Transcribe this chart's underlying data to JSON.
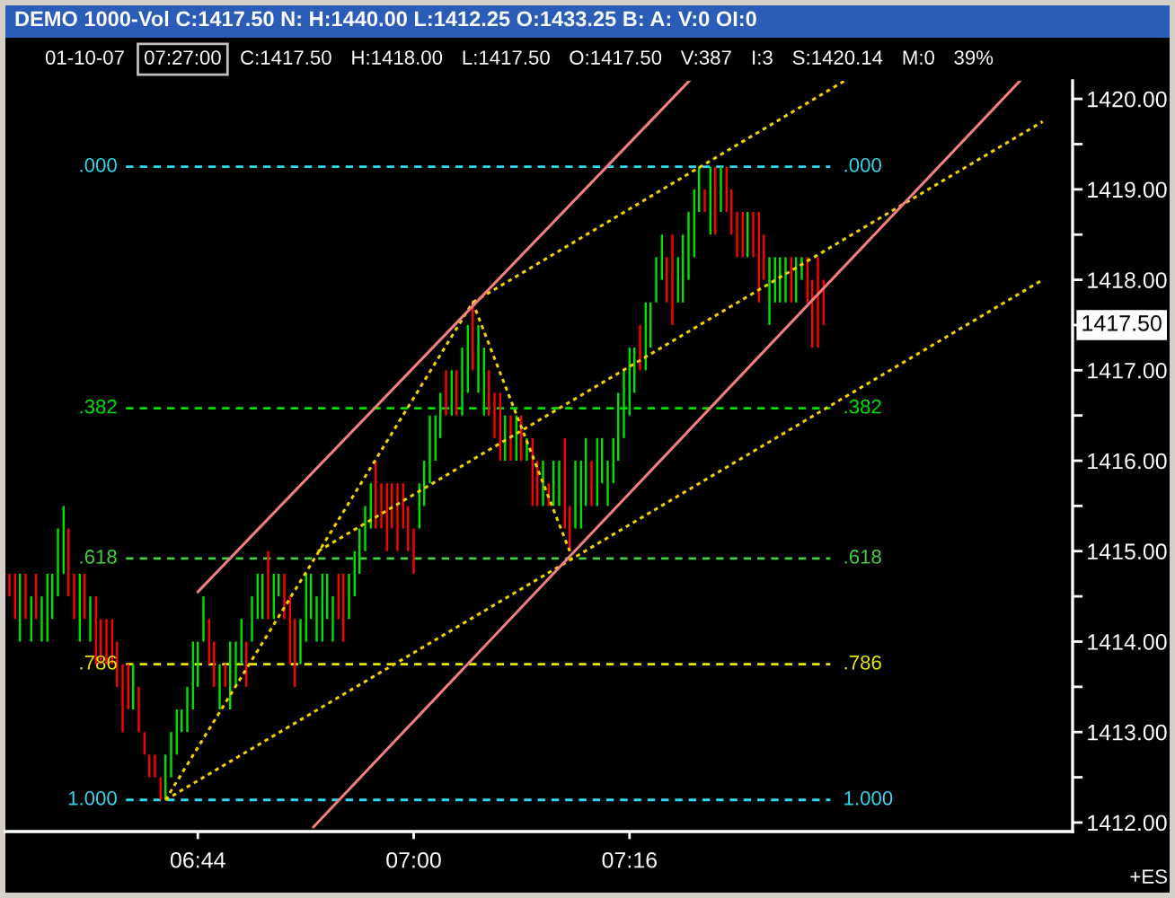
{
  "chart_data": {
    "type": "bar",
    "title": "DEMO 1000-Vol C:1417.50 N: H:1440.00 L:1412.25 O:1433.25 B: A: V:0 OI:0",
    "annotations": [
      "01-10-07",
      "07:27:00",
      "C:1417.50",
      "H:1418.00",
      "L:1417.50",
      "O:1417.50",
      "V:387",
      "I:3",
      "S:1420.14",
      "M:0",
      "39%",
      "+ES",
      "1417.50",
      ".000",
      ".000",
      ".382",
      ".382",
      ".618",
      ".618",
      ".786",
      ".786",
      "1.000",
      "1.000"
    ],
    "x": [
      6.5,
      6.507,
      6.513,
      6.52,
      6.527,
      6.533,
      6.54,
      6.547,
      6.553,
      6.56,
      6.567,
      6.573,
      6.58,
      6.587,
      6.593,
      6.6,
      6.607,
      6.613,
      6.62,
      6.627,
      6.633,
      6.64,
      6.647,
      6.653,
      6.66,
      6.667,
      6.673,
      6.68,
      6.687,
      6.693,
      6.7,
      6.707,
      6.713,
      6.72,
      6.727,
      6.733,
      6.74,
      6.747,
      6.753,
      6.76,
      6.767,
      6.773,
      6.78,
      6.787,
      6.793,
      6.8,
      6.807,
      6.813,
      6.82,
      6.827,
      6.833,
      6.84,
      6.847,
      6.853,
      6.86,
      6.867,
      6.873,
      6.88,
      6.887,
      6.893,
      6.9,
      6.907,
      6.913,
      6.92,
      6.927,
      6.933,
      6.94,
      6.947,
      6.953,
      6.96,
      6.967,
      6.973,
      6.98,
      6.987,
      6.993,
      7.0,
      7.007,
      7.013,
      7.02,
      7.027,
      7.033,
      7.04,
      7.047,
      7.053,
      7.06,
      7.067,
      7.073,
      7.08,
      7.087,
      7.093,
      7.1,
      7.107,
      7.113,
      7.12,
      7.127,
      7.133,
      7.14,
      7.147,
      7.153,
      7.16,
      7.167,
      7.173,
      7.18,
      7.187,
      7.193,
      7.2,
      7.207,
      7.213,
      7.22,
      7.227,
      7.233,
      7.24,
      7.247,
      7.253,
      7.26,
      7.267,
      7.273,
      7.28,
      7.287,
      7.293,
      7.3,
      7.307,
      7.313,
      7.32,
      7.327,
      7.333,
      7.34,
      7.347,
      7.353,
      7.36,
      7.367,
      7.373,
      7.38,
      7.387,
      7.393,
      7.4,
      7.407,
      7.413,
      7.42,
      7.427,
      7.433,
      7.44,
      7.447,
      7.453,
      7.46,
      7.467,
      7.473,
      7.48,
      7.487,
      7.493,
      7.5,
      7.507
    ],
    "base": [
      1414.5,
      1414.25,
      1414.0,
      1414.25,
      1414.0,
      1414.25,
      1414.0,
      1414.0,
      1414.25,
      1414.5,
      1414.75,
      1414.5,
      1414.25,
      1414.0,
      1414.25,
      1414.0,
      1413.75,
      1413.75,
      1413.75,
      1413.75,
      1413.5,
      1413.0,
      1413.25,
      1413.25,
      1413.0,
      1412.75,
      1412.5,
      1412.5,
      1412.25,
      1412.25,
      1412.5,
      1412.75,
      1413.0,
      1413.0,
      1413.25,
      1413.5,
      1414.0,
      1413.75,
      1413.5,
      1413.25,
      1413.5,
      1413.25,
      1413.5,
      1413.75,
      1413.5,
      1414.0,
      1414.25,
      1414.25,
      1414.25,
      1414.25,
      1414.5,
      1414.25,
      1413.75,
      1413.5,
      1413.75,
      1414.0,
      1414.25,
      1414.0,
      1414.0,
      1414.25,
      1414.0,
      1414.25,
      1414.0,
      1414.25,
      1414.5,
      1414.75,
      1415.0,
      1415.25,
      1415.25,
      1415.25,
      1415.0,
      1415.25,
      1415.0,
      1415.25,
      1415.0,
      1414.75,
      1415.25,
      1415.5,
      1415.75,
      1416.0,
      1416.25,
      1416.5,
      1416.5,
      1416.5,
      1416.5,
      1416.75,
      1417.0,
      1416.75,
      1416.5,
      1416.5,
      1416.25,
      1416.0,
      1416.0,
      1416.0,
      1416.0,
      1416.0,
      1416.0,
      1415.5,
      1415.5,
      1415.5,
      1415.5,
      1415.5,
      1415.5,
      1415.25,
      1415.0,
      1415.25,
      1415.25,
      1415.5,
      1415.5,
      1415.5,
      1415.75,
      1415.5,
      1415.75,
      1416.0,
      1416.25,
      1416.5,
      1416.75,
      1417.0,
      1417.0,
      1417.25,
      1417.75,
      1418.0,
      1417.75,
      1417.5,
      1417.75,
      1417.75,
      1418.0,
      1418.25,
      1418.75,
      1418.75,
      1418.5,
      1418.5,
      1418.75,
      1418.75,
      1418.5,
      1418.25,
      1418.25,
      1418.25,
      1418.25,
      1417.75,
      1418.0,
      1417.5,
      1417.75,
      1417.75,
      1417.75,
      1417.75,
      1417.75,
      1418.0,
      1417.75,
      1417.25,
      1417.25,
      1417.5
    ],
    "values": [
      0.25,
      0.5,
      0.75,
      0.5,
      0.5,
      0.5,
      0.5,
      0.75,
      0.5,
      0.75,
      0.75,
      0.75,
      0.5,
      0.75,
      0.5,
      0.5,
      0.75,
      0.5,
      0.5,
      0.5,
      0.5,
      0.75,
      0.5,
      0.5,
      0.5,
      0.25,
      0.25,
      0.25,
      0.25,
      0.5,
      0.5,
      0.5,
      0.25,
      0.5,
      0.75,
      0.5,
      0.5,
      0.5,
      0.5,
      0.5,
      0.25,
      0.75,
      0.5,
      0.5,
      0.5,
      0.5,
      0.5,
      0.5,
      0.75,
      0.5,
      0.25,
      0.5,
      0.75,
      0.75,
      0.5,
      0.75,
      0.5,
      0.5,
      0.75,
      0.5,
      0.5,
      0.5,
      0.75,
      0.5,
      0.5,
      0.5,
      0.5,
      0.5,
      0.75,
      0.5,
      0.75,
      0.5,
      0.75,
      0.5,
      0.5,
      0.5,
      0.5,
      0.5,
      0.75,
      0.5,
      0.5,
      0.5,
      0.5,
      0.5,
      0.75,
      0.75,
      0.75,
      0.75,
      0.75,
      0.5,
      0.5,
      0.75,
      0.5,
      0.5,
      0.5,
      0.5,
      0.25,
      0.75,
      0.5,
      0.5,
      0.25,
      0.5,
      0.5,
      1.0,
      0.5,
      0.75,
      0.75,
      0.75,
      0.5,
      0.75,
      0.5,
      0.5,
      0.5,
      0.75,
      0.75,
      0.75,
      0.5,
      0.5,
      0.75,
      0.5,
      0.5,
      0.5,
      0.5,
      1.0,
      0.5,
      0.75,
      0.75,
      0.75,
      0.5,
      0.25,
      0.75,
      0.75,
      0.5,
      0.5,
      0.5,
      0.5,
      0.5,
      0.5,
      0.5,
      1.0,
      0.5,
      0.75,
      0.5,
      0.5,
      0.5,
      0.5,
      0.5,
      0.25,
      0.5,
      0.75,
      1.0,
      0.5
    ],
    "colors": [
      "#ff0000",
      "#ff0000",
      "#00e000",
      "#ff0000",
      "#00e000",
      "#ff0000",
      "#00e000",
      "#00e000",
      "#00e000",
      "#00e000",
      "#00e000",
      "#ff0000",
      "#ff0000",
      "#00e000",
      "#ff0000",
      "#00e000",
      "#ff0000",
      "#ff0000",
      "#ff0000",
      "#ff0000",
      "#ff0000",
      "#ff0000",
      "#ff0000",
      "#00e000",
      "#ff0000",
      "#ff0000",
      "#ff0000",
      "#ff0000",
      "#ff0000",
      "#00e000",
      "#00e000",
      "#00e000",
      "#00e000",
      "#00e000",
      "#00e000",
      "#00e000",
      "#00e000",
      "#ff0000",
      "#ff0000",
      "#00e000",
      "#ff0000",
      "#00e000",
      "#00e000",
      "#00e000",
      "#ff0000",
      "#00e000",
      "#00e000",
      "#00e000",
      "#ff0000",
      "#00e000",
      "#00e000",
      "#ff0000",
      "#ff0000",
      "#ff0000",
      "#00e000",
      "#00e000",
      "#00e000",
      "#00e000",
      "#00e000",
      "#00e000",
      "#00e000",
      "#ff0000",
      "#ff0000",
      "#00e000",
      "#00e000",
      "#00e000",
      "#00e000",
      "#00e000",
      "#ff0000",
      "#ff0000",
      "#ff0000",
      "#ff0000",
      "#ff0000",
      "#ff0000",
      "#ff0000",
      "#ff0000",
      "#00e000",
      "#00e000",
      "#00e000",
      "#00e000",
      "#00e000",
      "#ff0000",
      "#00e000",
      "#ff0000",
      "#00e000",
      "#00e000",
      "#ff0000",
      "#00e000",
      "#00e000",
      "#ff0000",
      "#ff0000",
      "#ff0000",
      "#00e000",
      "#ff0000",
      "#00e000",
      "#ff0000",
      "#00e000",
      "#ff0000",
      "#ff0000",
      "#00e000",
      "#ff0000",
      "#00e000",
      "#00e000",
      "#ff0000",
      "#ff0000",
      "#00e000",
      "#00e000",
      "#00e000",
      "#ff0000",
      "#00e000",
      "#00e000",
      "#00e000",
      "#00e000",
      "#00e000",
      "#00e000",
      "#00e000",
      "#00e000",
      "#ff0000",
      "#00e000",
      "#00e000",
      "#00e000",
      "#00e000",
      "#ff0000",
      "#ff0000",
      "#00e000",
      "#00e000",
      "#00e000",
      "#00e000",
      "#00e000",
      "#ff0000",
      "#00e000",
      "#ff0000",
      "#00e000",
      "#ff0000",
      "#ff0000",
      "#ff0000",
      "#ff0000",
      "#00e000",
      "#ff0000",
      "#ff0000",
      "#ff0000",
      "#00e000",
      "#00e000",
      "#00e000",
      "#00e000",
      "#ff0000",
      "#00e000",
      "#00e000",
      "#ff0000",
      "#ff0000",
      "#ff0000",
      "#ff0000"
    ],
    "series": [
      {
        "type": "line",
        "x": [
          6.693,
          7.073,
          7.193
        ],
        "values": [
          1412.25,
          1417.75,
          1415.0
        ],
        "color": "#f0d000",
        "line_style": "dotted"
      },
      {
        "type": "line",
        "x": [
          6.693,
          7.778
        ],
        "values": [
          1412.25,
          1418.0
        ],
        "color": "#f0d000",
        "line_style": "dotted"
      },
      {
        "type": "line",
        "x": [
          6.882,
          7.778
        ],
        "values": [
          1415.0,
          1419.75
        ],
        "color": "#f0d000",
        "line_style": "dotted"
      },
      {
        "type": "line",
        "x": [
          7.073,
          7.533
        ],
        "values": [
          1417.75,
          1420.2
        ],
        "color": "#f0d000",
        "line_style": "dotted"
      },
      {
        "type": "line",
        "x": [
          6.733,
          7.341
        ],
        "values": [
          1414.55,
          1420.2
        ],
        "color": "#f08080",
        "line_style": "solid"
      },
      {
        "type": "line",
        "x": [
          6.876,
          7.75
        ],
        "values": [
          1411.95,
          1420.2
        ],
        "color": "#f08080",
        "line_style": "solid"
      }
    ],
    "ref_lines": [
      {
        "axis": "y",
        "value": 1419.25,
        "color": "#30d8f0",
        "line_style": "dashed"
      },
      {
        "axis": "y",
        "value": 1416.58,
        "color": "#00e000",
        "line_style": "dashed"
      },
      {
        "axis": "y",
        "value": 1414.92,
        "color": "#40d040",
        "line_style": "dashed"
      },
      {
        "axis": "y",
        "value": 1413.75,
        "color": "#e8e800",
        "line_style": "dashed"
      },
      {
        "axis": "y",
        "value": 1412.25,
        "color": "#30d8f0",
        "line_style": "dashed"
      }
    ],
    "xlim": [
      6.495,
      7.815
    ],
    "ylim": [
      1411.9,
      1420.2
    ],
    "xticks": [
      {
        "value": 6.733,
        "label": "06:44"
      },
      {
        "value": 7.0,
        "label": "07:00"
      },
      {
        "value": 7.267,
        "label": "07:16"
      }
    ],
    "yticks": [
      {
        "value": 1412,
        "label": "1412.00"
      },
      {
        "value": 1412.5,
        "label": null
      },
      {
        "value": 1413,
        "label": "1413.00"
      },
      {
        "value": 1413.5,
        "label": null
      },
      {
        "value": 1414,
        "label": "1414.00"
      },
      {
        "value": 1414.5,
        "label": null
      },
      {
        "value": 1415,
        "label": "1415.00"
      },
      {
        "value": 1415.5,
        "label": null
      },
      {
        "value": 1416,
        "label": "1416.00"
      },
      {
        "value": 1416.5,
        "label": null
      },
      {
        "value": 1417,
        "label": "1417.00"
      },
      {
        "value": 1417.5,
        "label": null
      },
      {
        "value": 1418,
        "label": "1418.00"
      },
      {
        "value": 1418.5,
        "label": null
      },
      {
        "value": 1419,
        "label": "1419.00"
      },
      {
        "value": 1419.5,
        "label": null
      },
      {
        "value": 1420,
        "label": "1420.00"
      }
    ]
  }
}
